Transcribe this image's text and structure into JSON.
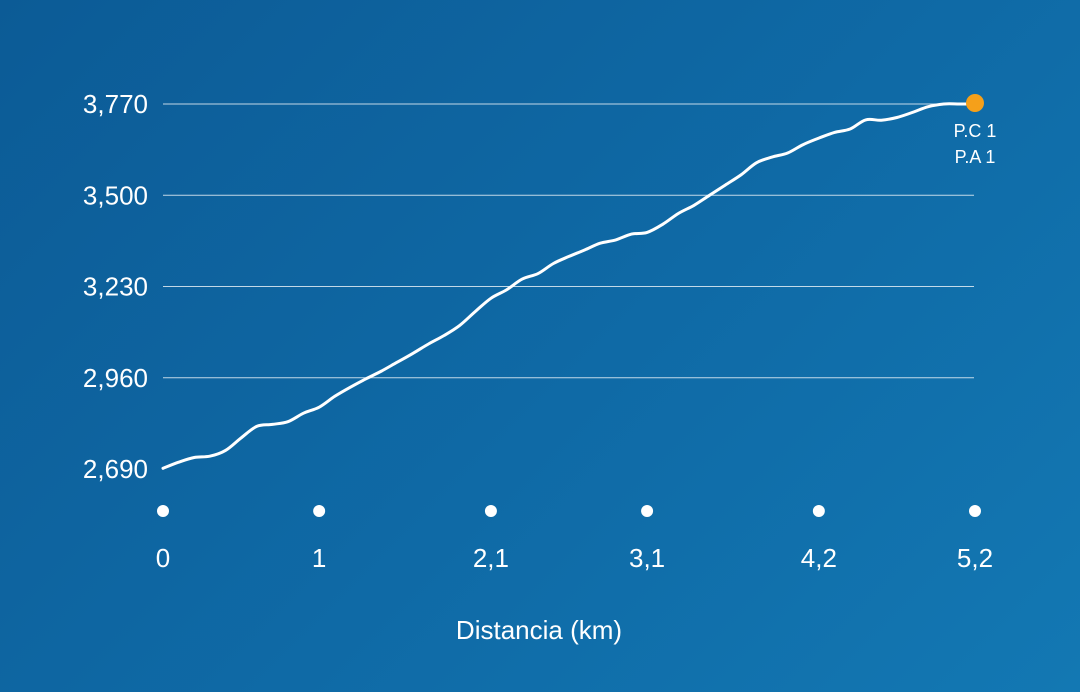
{
  "chart_data": {
    "type": "area",
    "xlabel": "Distancia (km)",
    "ylabel": "",
    "y_ticks": [
      "2,690",
      "2,960",
      "3,230",
      "3,500",
      "3,770"
    ],
    "y_tick_values": [
      2690,
      2960,
      3230,
      3500,
      3770
    ],
    "x_ticks": [
      "0",
      "1",
      "2,1",
      "3,1",
      "4,2",
      "5,2"
    ],
    "x_tick_values": [
      0,
      1,
      2.1,
      3.1,
      4.2,
      5.2
    ],
    "xlim": [
      0,
      5.2
    ],
    "ylim": [
      2690,
      3770
    ],
    "grid": true,
    "series": [
      {
        "x": [
          0,
          0.1,
          0.2,
          0.3,
          0.4,
          0.5,
          0.6,
          0.7,
          0.8,
          0.9,
          1.0,
          1.1,
          1.2,
          1.3,
          1.4,
          1.5,
          1.6,
          1.7,
          1.8,
          1.9,
          2.0,
          2.1,
          2.2,
          2.3,
          2.4,
          2.5,
          2.6,
          2.7,
          2.8,
          2.9,
          3.0,
          3.1,
          3.2,
          3.3,
          3.4,
          3.5,
          3.6,
          3.7,
          3.8,
          3.9,
          4.0,
          4.1,
          4.2,
          4.3,
          4.4,
          4.5,
          4.6,
          4.7,
          4.8,
          4.9,
          5.0,
          5.1,
          5.2
        ],
        "values": [
          2692,
          2710,
          2724,
          2728,
          2745,
          2782,
          2816,
          2822,
          2830,
          2855,
          2873,
          2905,
          2932,
          2957,
          2980,
          3006,
          3032,
          3060,
          3085,
          3115,
          3156,
          3195,
          3220,
          3252,
          3268,
          3298,
          3319,
          3338,
          3358,
          3368,
          3385,
          3390,
          3414,
          3446,
          3470,
          3500,
          3530,
          3560,
          3596,
          3613,
          3625,
          3650,
          3669,
          3686,
          3696,
          3723,
          3722,
          3730,
          3745,
          3762,
          3770,
          3770,
          3770
        ]
      }
    ],
    "highlight_point": {
      "x": 5.2,
      "y": 3770,
      "color": "#f5a01a",
      "labels": [
        "P.C 1",
        "P.A 1"
      ]
    },
    "colors": {
      "line": "#ffffff",
      "grid": "#ffffff",
      "marker": "#f5a01a",
      "background": "#0f6aa6"
    }
  }
}
